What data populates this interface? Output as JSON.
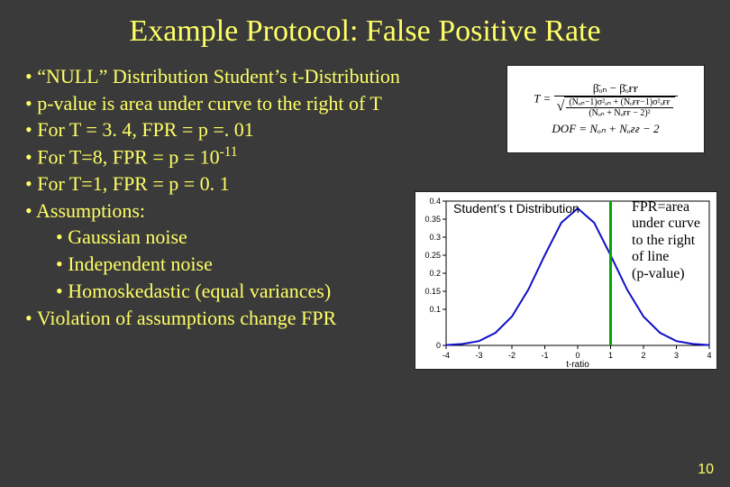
{
  "title": "Example Protocol: False Positive Rate",
  "bullets": {
    "b1": "“NULL” Distribution Student’s t-Distribution",
    "b2": "p-value is area under curve to the right of T",
    "b3": "For T = 3. 4, FPR = p =. 01",
    "b4_pre": "For T=8, FPR = p = 10",
    "b4_sup": "-11",
    "b5": "For T=1, FPR = p = 0. 1",
    "b6": "Assumptions:",
    "b6a": "Gaussian noise",
    "b6b": "Independent noise",
    "b6c": "Homoskedastic (equal variances)",
    "b7": "Violation of assumptions change FPR"
  },
  "formula": {
    "t_lhs": "T =",
    "t_num": "β̄ₒₙ − β̄ₒғғ",
    "t_den_num": "(Nₒₙ−1)σ²ₒₙ + (Nₒғғ−1)σ²ₒғғ",
    "t_den_den": "(Nₒₙ + Nₒғғ − 2)²",
    "dof": "DOF = Nₒₙ + Nₒғғ − 2"
  },
  "chart": {
    "type": "line",
    "title": "Student’s t Distribution",
    "xlabel": "t-ratio",
    "x_ticks": [
      "-4",
      "-3",
      "-2",
      "-1",
      "0",
      "1",
      "2",
      "3",
      "4"
    ],
    "y_ticks": [
      "0",
      "0.1",
      "0.15",
      "0.2",
      "0.25",
      "0.3",
      "0.35",
      "0.4"
    ],
    "xlim": [
      -4,
      4
    ],
    "ylim": [
      0,
      0.4
    ],
    "line_color": "#1010c8",
    "line_width": 2,
    "cutoff_color": "#00aa00",
    "cutoff_width": 3,
    "cutoff_x": 1.0,
    "background_color": "#ffffff",
    "curve_x": [
      -4,
      -3.5,
      -3,
      -2.5,
      -2,
      -1.5,
      -1,
      -0.5,
      0,
      0.5,
      1,
      1.5,
      2,
      2.5,
      3,
      3.5,
      4
    ],
    "curve_y": [
      0.001,
      0.004,
      0.012,
      0.035,
      0.08,
      0.155,
      0.25,
      0.34,
      0.38,
      0.34,
      0.25,
      0.155,
      0.08,
      0.035,
      0.012,
      0.004,
      0.001
    ],
    "annotation": "FPR=area under curve to the right of line (p-value)",
    "annot_lines": [
      "FPR=area",
      "under curve",
      "to the right",
      "of line",
      "(p-value)"
    ]
  },
  "page_number": "10",
  "colors": {
    "bg": "#3a3a3a",
    "text": "#ffff66"
  }
}
